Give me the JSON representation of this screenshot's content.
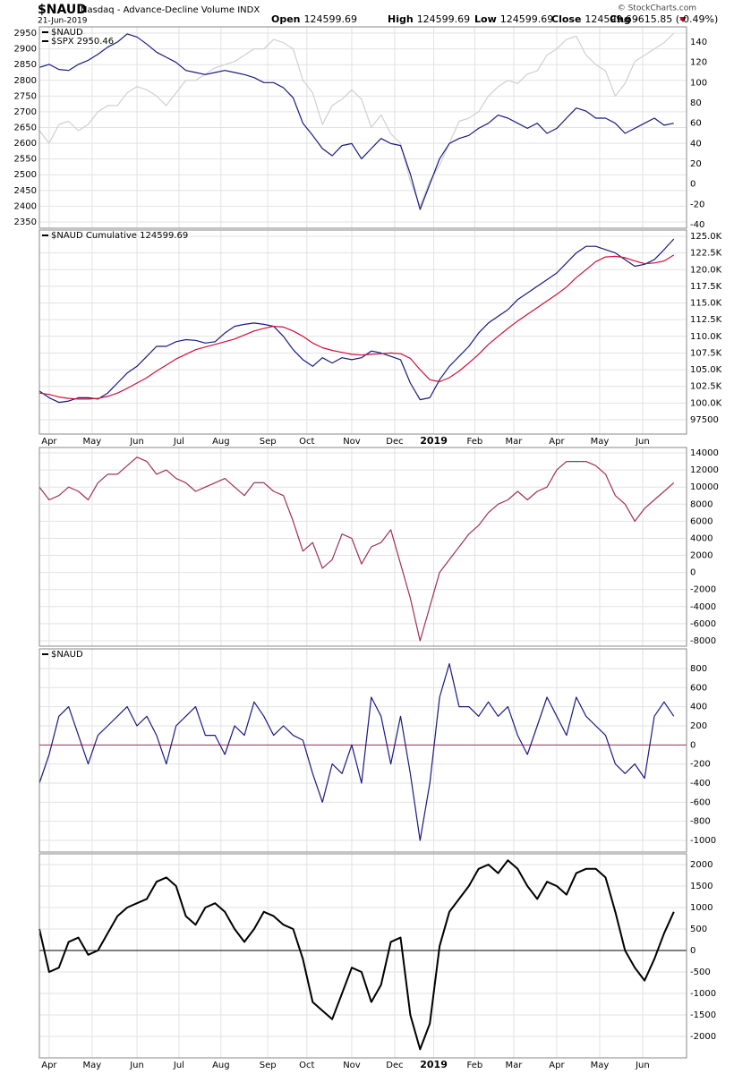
{
  "header": {
    "title": "$NAUD",
    "subtitle": "Nasdaq - Advance-Decline Volume INDX",
    "date": "21-Jun-2019",
    "copyright": "© StockCharts.com",
    "quote": [
      {
        "label": "Open",
        "value": "124599.69"
      },
      {
        "label": "High",
        "value": "124599.69"
      },
      {
        "label": "Low",
        "value": "124599.69"
      },
      {
        "label": "Close",
        "value": "124599.69"
      },
      {
        "label": "Chg",
        "value": "-615.85 (-0.49%)"
      }
    ]
  },
  "chart_data": [
    {
      "type": "line",
      "yaxis_side": "both",
      "grid": true,
      "show_xlabels": false,
      "legend": "top-left",
      "xlim": [
        0,
        66.3
      ],
      "xticks": [
        {
          "value": 1,
          "label": "Apr"
        },
        {
          "value": 5.4,
          "label": "May"
        },
        {
          "value": 10,
          "label": "Jun"
        },
        {
          "value": 14.3,
          "label": "Jul"
        },
        {
          "value": 18.6,
          "label": "Aug"
        },
        {
          "value": 23.4,
          "label": "Sep"
        },
        {
          "value": 27.4,
          "label": "Oct"
        },
        {
          "value": 32,
          "label": "Nov"
        },
        {
          "value": 36.4,
          "label": "Dec"
        },
        {
          "value": 40.4,
          "label": "2019"
        },
        {
          "value": 44.6,
          "label": "Feb"
        },
        {
          "value": 48.6,
          "label": "Mar"
        },
        {
          "value": 53,
          "label": "Apr"
        },
        {
          "value": 57.4,
          "label": "May"
        },
        {
          "value": 61.8,
          "label": "Jun"
        }
      ],
      "ylim": [
        2330,
        2970
      ],
      "yticks": [
        2350,
        2400,
        2450,
        2500,
        2550,
        2600,
        2650,
        2700,
        2750,
        2800,
        2850,
        2900,
        2950
      ],
      "y2lim": [
        -43.5,
        155
      ],
      "y2ticks": [
        -40,
        -20,
        0,
        20,
        40,
        60,
        80,
        100,
        120,
        140
      ],
      "series": [
        {
          "name": "$SPX 2950.46",
          "color": "#d0d0d0",
          "values": [
            2640,
            2600,
            2660,
            2670,
            2640,
            2660,
            2700,
            2720,
            2720,
            2760,
            2780,
            2770,
            2750,
            2720,
            2760,
            2800,
            2800,
            2820,
            2840,
            2850,
            2860,
            2880,
            2900,
            2900,
            2930,
            2920,
            2900,
            2800,
            2760,
            2660,
            2720,
            2740,
            2770,
            2740,
            2650,
            2690,
            2630,
            2600,
            2480,
            2400,
            2480,
            2530,
            2600,
            2670,
            2680,
            2700,
            2750,
            2780,
            2800,
            2790,
            2820,
            2830,
            2880,
            2900,
            2930,
            2940,
            2880,
            2850,
            2830,
            2750,
            2790,
            2860,
            2880,
            2900,
            2920,
            2950
          ]
        },
        {
          "name": "$NAUD",
          "color": "#1a1a80",
          "axis": "y2",
          "values": [
            115,
            118,
            113,
            112,
            118,
            122,
            128,
            135,
            140,
            148,
            145,
            138,
            130,
            125,
            120,
            112,
            110,
            108,
            110,
            112,
            110,
            108,
            105,
            100,
            100,
            95,
            85,
            60,
            48,
            35,
            28,
            38,
            40,
            25,
            35,
            45,
            40,
            38,
            10,
            -25,
            0,
            25,
            40,
            45,
            48,
            55,
            60,
            68,
            65,
            60,
            55,
            60,
            50,
            55,
            65,
            75,
            72,
            65,
            65,
            60,
            50,
            55,
            60,
            65,
            58,
            60
          ]
        }
      ]
    },
    {
      "type": "line",
      "yaxis_side": "right",
      "grid": true,
      "show_xlabels": true,
      "legend": "top-left",
      "xlim": [
        0,
        66.3
      ],
      "xticks": [
        {
          "value": 1,
          "label": "Apr"
        },
        {
          "value": 5.4,
          "label": "May"
        },
        {
          "value": 10,
          "label": "Jun"
        },
        {
          "value": 14.3,
          "label": "Jul"
        },
        {
          "value": 18.6,
          "label": "Aug"
        },
        {
          "value": 23.4,
          "label": "Sep"
        },
        {
          "value": 27.4,
          "label": "Oct"
        },
        {
          "value": 32,
          "label": "Nov"
        },
        {
          "value": 36.4,
          "label": "Dec"
        },
        {
          "value": 40.4,
          "label": "2019"
        },
        {
          "value": 44.6,
          "label": "Feb"
        },
        {
          "value": 48.6,
          "label": "Mar"
        },
        {
          "value": 53,
          "label": "Apr"
        },
        {
          "value": 57.4,
          "label": "May"
        },
        {
          "value": 61.8,
          "label": "Jun"
        }
      ],
      "ylim": [
        95350,
        125940
      ],
      "yticks": [
        97500,
        {
          "value": 100000,
          "label": "100.0K"
        },
        {
          "value": 102500,
          "label": "102.5K"
        },
        {
          "value": 105000,
          "label": "105.0K"
        },
        {
          "value": 107500,
          "label": "107.5K"
        },
        {
          "value": 110000,
          "label": "110.0K"
        },
        {
          "value": 112500,
          "label": "112.5K"
        },
        {
          "value": 115000,
          "label": "115.0K"
        },
        {
          "value": 117500,
          "label": "117.5K"
        },
        {
          "value": 120000,
          "label": "120.0K"
        },
        {
          "value": 122500,
          "label": "122.5K"
        },
        {
          "value": 125000,
          "label": "125.0K"
        }
      ],
      "series": [
        {
          "name": "$NAUD Cumulative 124599.69",
          "color": "#1a1a80",
          "values": [
            101800,
            100800,
            100100,
            100300,
            100800,
            100800,
            100600,
            101500,
            103000,
            104500,
            105500,
            107000,
            108500,
            108500,
            109200,
            109500,
            109400,
            109000,
            109200,
            110500,
            111500,
            111800,
            112000,
            111800,
            111500,
            110000,
            108000,
            106500,
            105500,
            106800,
            106000,
            106800,
            106500,
            106800,
            107800,
            107500,
            107000,
            106500,
            103000,
            100500,
            100800,
            103500,
            105500,
            107000,
            108500,
            110500,
            112000,
            113000,
            114000,
            115500,
            116500,
            117500,
            118500,
            119500,
            121000,
            122500,
            123500,
            123500,
            123000,
            122500,
            121500,
            120500,
            120800,
            121500,
            123000,
            124600
          ]
        },
        {
          "color": "#d0103a",
          "values": [
            101500,
            101300,
            100900,
            100700,
            100600,
            100600,
            100700,
            101000,
            101500,
            102200,
            103000,
            103800,
            104800,
            105700,
            106600,
            107300,
            108000,
            108400,
            108800,
            109200,
            109600,
            110200,
            110800,
            111200,
            111500,
            111400,
            110800,
            110000,
            109000,
            108300,
            107900,
            107600,
            107300,
            107200,
            107300,
            107400,
            107500,
            107400,
            106700,
            105000,
            103500,
            103200,
            103800,
            104800,
            106000,
            107300,
            108800,
            110000,
            111200,
            112300,
            113300,
            114300,
            115300,
            116300,
            117400,
            118800,
            120000,
            121200,
            121900,
            122000,
            121800,
            121300,
            120900,
            121000,
            121300,
            122200
          ]
        }
      ]
    },
    {
      "type": "line",
      "yaxis_side": "right",
      "grid": true,
      "show_xlabels": false,
      "xlim": [
        0,
        66.3
      ],
      "xticks": [
        {
          "value": 1,
          "label": "Apr"
        },
        {
          "value": 5.4,
          "label": "May"
        },
        {
          "value": 10,
          "label": "Jun"
        },
        {
          "value": 14.3,
          "label": "Jul"
        },
        {
          "value": 18.6,
          "label": "Aug"
        },
        {
          "value": 23.4,
          "label": "Sep"
        },
        {
          "value": 27.4,
          "label": "Oct"
        },
        {
          "value": 32,
          "label": "Nov"
        },
        {
          "value": 36.4,
          "label": "Dec"
        },
        {
          "value": 40.4,
          "label": "2019"
        },
        {
          "value": 44.6,
          "label": "Feb"
        },
        {
          "value": 48.6,
          "label": "Mar"
        },
        {
          "value": 53,
          "label": "Apr"
        },
        {
          "value": 57.4,
          "label": "May"
        },
        {
          "value": 61.8,
          "label": "Jun"
        }
      ],
      "ylim": [
        -8630,
        14630
      ],
      "yticks": [
        -8000,
        -6000,
        -4000,
        -2000,
        0,
        2000,
        4000,
        6000,
        8000,
        10000,
        12000,
        14000
      ],
      "series": [
        {
          "color": "#a0305a",
          "values": [
            10000,
            8500,
            9000,
            10000,
            9500,
            8500,
            10500,
            11500,
            11500,
            12500,
            13500,
            13000,
            11500,
            12000,
            11000,
            10500,
            9500,
            10000,
            10500,
            11000,
            10000,
            9000,
            10500,
            10500,
            9500,
            9000,
            6000,
            2500,
            3500,
            500,
            1500,
            4500,
            4000,
            1000,
            3000,
            3500,
            5000,
            1000,
            -3000,
            -8000,
            -4000,
            0,
            1500,
            3000,
            4500,
            5500,
            7000,
            8000,
            8500,
            9500,
            8500,
            9500,
            10000,
            12000,
            13000,
            13000,
            13000,
            12500,
            11500,
            9000,
            8000,
            6000,
            7500,
            8500,
            9500,
            10500
          ]
        }
      ]
    },
    {
      "type": "line",
      "yaxis_side": "right",
      "grid": true,
      "show_xlabels": false,
      "legend": "top-left",
      "hline": 0,
      "hline_color": "#a0305a",
      "xlim": [
        0,
        66.3
      ],
      "xticks": [
        {
          "value": 1,
          "label": "Apr"
        },
        {
          "value": 5.4,
          "label": "May"
        },
        {
          "value": 10,
          "label": "Jun"
        },
        {
          "value": 14.3,
          "label": "Jul"
        },
        {
          "value": 18.6,
          "label": "Aug"
        },
        {
          "value": 23.4,
          "label": "Sep"
        },
        {
          "value": 27.4,
          "label": "Oct"
        },
        {
          "value": 32,
          "label": "Nov"
        },
        {
          "value": 36.4,
          "label": "Dec"
        },
        {
          "value": 40.4,
          "label": "2019"
        },
        {
          "value": 44.6,
          "label": "Feb"
        },
        {
          "value": 48.6,
          "label": "Mar"
        },
        {
          "value": 53,
          "label": "Apr"
        },
        {
          "value": 57.4,
          "label": "May"
        },
        {
          "value": 61.8,
          "label": "Jun"
        }
      ],
      "ylim": [
        -1122,
        1006
      ],
      "yticks": [
        -1000,
        -800,
        -600,
        -400,
        -200,
        0,
        200,
        400,
        600,
        800
      ],
      "series": [
        {
          "name": "$NAUD",
          "color": "#1a1a80",
          "values": [
            -400,
            -100,
            300,
            400,
            100,
            -200,
            100,
            200,
            300,
            400,
            200,
            300,
            100,
            -200,
            200,
            300,
            400,
            100,
            100,
            -100,
            200,
            100,
            450,
            300,
            100,
            200,
            100,
            50,
            -300,
            -600,
            -200,
            -300,
            0,
            -400,
            500,
            300,
            -200,
            300,
            -300,
            -1000,
            -400,
            500,
            850,
            400,
            400,
            300,
            450,
            300,
            400,
            100,
            -100,
            200,
            500,
            300,
            100,
            500,
            300,
            200,
            100,
            -200,
            -300,
            -200,
            -350,
            300,
            450,
            300
          ]
        }
      ]
    },
    {
      "type": "line",
      "yaxis_side": "right",
      "grid": true,
      "show_xlabels": true,
      "hline": 0,
      "hline_color": "#000000",
      "line_width": 2,
      "xlim": [
        0,
        66.3
      ],
      "xticks": [
        {
          "value": 1,
          "label": "Apr"
        },
        {
          "value": 5.4,
          "label": "May"
        },
        {
          "value": 10,
          "label": "Jun"
        },
        {
          "value": 14.3,
          "label": "Jul"
        },
        {
          "value": 18.6,
          "label": "Aug"
        },
        {
          "value": 23.4,
          "label": "Sep"
        },
        {
          "value": 27.4,
          "label": "Oct"
        },
        {
          "value": 32,
          "label": "Nov"
        },
        {
          "value": 36.4,
          "label": "Dec"
        },
        {
          "value": 40.4,
          "label": "2019"
        },
        {
          "value": 44.6,
          "label": "Feb"
        },
        {
          "value": 48.6,
          "label": "Mar"
        },
        {
          "value": 53,
          "label": "Apr"
        },
        {
          "value": 57.4,
          "label": "May"
        },
        {
          "value": 61.8,
          "label": "Jun"
        }
      ],
      "ylim": [
        -2500,
        2250
      ],
      "yticks": [
        -2000,
        -1500,
        -1000,
        -500,
        0,
        500,
        1000,
        1500,
        2000
      ],
      "series": [
        {
          "color": "#000000",
          "values": [
            500,
            -500,
            -400,
            200,
            300,
            -100,
            0,
            400,
            800,
            1000,
            1100,
            1200,
            1600,
            1700,
            1500,
            800,
            600,
            1000,
            1100,
            900,
            500,
            200,
            500,
            900,
            800,
            600,
            500,
            -200,
            -1200,
            -1400,
            -1600,
            -1000,
            -400,
            -500,
            -1200,
            -800,
            200,
            300,
            -1500,
            -2300,
            -1700,
            100,
            900,
            1200,
            1500,
            1900,
            2000,
            1800,
            2100,
            1900,
            1500,
            1200,
            1600,
            1500,
            1300,
            1800,
            1900,
            1900,
            1700,
            900,
            0,
            -400,
            -700,
            -200,
            400,
            900
          ]
        }
      ]
    }
  ]
}
